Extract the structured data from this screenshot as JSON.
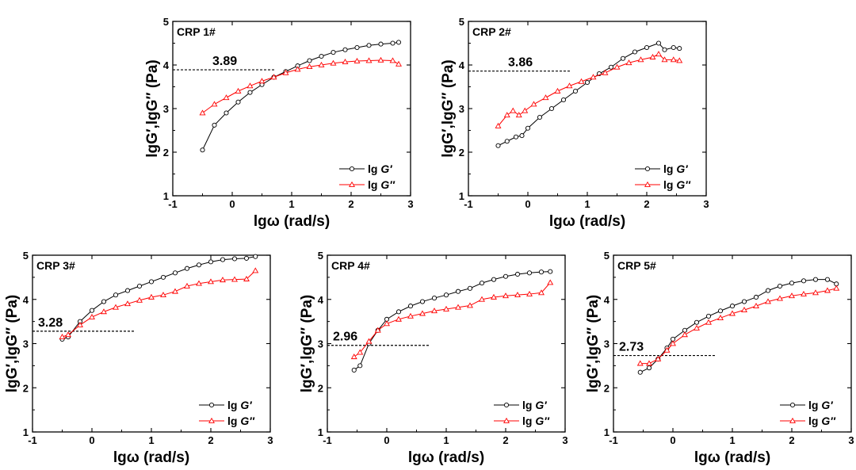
{
  "chart_data": [
    {
      "type": "line",
      "title": "CRP 1#",
      "xlabel": "lgω (rad/s)",
      "ylabel": "lgG′,lgG″ (Pa)",
      "xlim": [
        -1,
        3
      ],
      "ylim": [
        1,
        5
      ],
      "xticks": [
        -1,
        0,
        1,
        2,
        3
      ],
      "yticks": [
        1,
        2,
        3,
        4,
        5
      ],
      "crossover": 3.89,
      "crossover_label": "3.89",
      "series": [
        {
          "name": "lg G′",
          "name_prefix": "lg",
          "name_symbol": "G′",
          "color": "#000000",
          "marker": "circle",
          "x": [
            -0.5,
            -0.3,
            -0.1,
            0.1,
            0.3,
            0.5,
            0.7,
            0.9,
            1.1,
            1.3,
            1.5,
            1.7,
            1.9,
            2.1,
            2.3,
            2.5,
            2.7,
            2.8
          ],
          "y": [
            2.05,
            2.62,
            2.9,
            3.15,
            3.37,
            3.55,
            3.72,
            3.85,
            3.98,
            4.1,
            4.2,
            4.29,
            4.35,
            4.4,
            4.45,
            4.48,
            4.5,
            4.52
          ]
        },
        {
          "name": "lg G″",
          "name_prefix": "lg",
          "name_symbol": "G″",
          "color": "#ff0000",
          "marker": "triangle",
          "x": [
            -0.5,
            -0.3,
            -0.1,
            0.1,
            0.3,
            0.5,
            0.7,
            0.9,
            1.1,
            1.3,
            1.5,
            1.7,
            1.9,
            2.1,
            2.3,
            2.5,
            2.7,
            2.8
          ],
          "y": [
            2.9,
            3.1,
            3.25,
            3.4,
            3.52,
            3.63,
            3.72,
            3.82,
            3.9,
            3.96,
            4.0,
            4.04,
            4.07,
            4.09,
            4.1,
            4.11,
            4.1,
            4.02
          ]
        }
      ]
    },
    {
      "type": "line",
      "title": "CRP 2#",
      "xlabel": "lgω (rad/s)",
      "ylabel": "lgG′,lgG″ (Pa)",
      "xlim": [
        -1,
        3
      ],
      "ylim": [
        1,
        5
      ],
      "xticks": [
        -1,
        0,
        1,
        2,
        3
      ],
      "yticks": [
        1,
        2,
        3,
        4,
        5
      ],
      "crossover": 3.86,
      "crossover_label": "3.86",
      "series": [
        {
          "name": "lg G′",
          "name_prefix": "lg",
          "name_symbol": "G′",
          "color": "#000000",
          "marker": "circle",
          "x": [
            -0.5,
            -0.35,
            -0.2,
            -0.1,
            0.0,
            0.2,
            0.4,
            0.6,
            0.8,
            1.0,
            1.2,
            1.4,
            1.6,
            1.8,
            2.0,
            2.2,
            2.3,
            2.45,
            2.55
          ],
          "y": [
            2.15,
            2.25,
            2.35,
            2.38,
            2.55,
            2.8,
            3.0,
            3.2,
            3.4,
            3.6,
            3.8,
            3.95,
            4.15,
            4.3,
            4.4,
            4.5,
            4.35,
            4.4,
            4.38
          ]
        },
        {
          "name": "lg G″",
          "name_prefix": "lg",
          "name_symbol": "G″",
          "color": "#ff0000",
          "marker": "triangle",
          "x": [
            -0.5,
            -0.35,
            -0.25,
            -0.15,
            -0.05,
            0.1,
            0.3,
            0.5,
            0.7,
            0.9,
            1.1,
            1.3,
            1.5,
            1.7,
            1.9,
            2.1,
            2.2,
            2.3,
            2.45,
            2.55
          ],
          "y": [
            2.6,
            2.85,
            2.95,
            2.85,
            2.95,
            3.1,
            3.25,
            3.4,
            3.52,
            3.62,
            3.72,
            3.82,
            3.95,
            4.05,
            4.12,
            4.18,
            4.25,
            4.12,
            4.12,
            4.1
          ]
        }
      ]
    },
    {
      "type": "line",
      "title": "CRP 3#",
      "xlabel": "lgω (rad/s)",
      "ylabel": "lgG′,lgG″ (Pa)",
      "xlim": [
        -1,
        3
      ],
      "ylim": [
        1,
        5
      ],
      "xticks": [
        -1,
        0,
        1,
        2,
        3
      ],
      "yticks": [
        1,
        2,
        3,
        4,
        5
      ],
      "crossover": 3.28,
      "crossover_label": "3.28",
      "series": [
        {
          "name": "lg G′",
          "name_prefix": "lg",
          "name_symbol": "G′",
          "color": "#000000",
          "marker": "circle",
          "x": [
            -0.5,
            -0.4,
            -0.2,
            0.0,
            0.2,
            0.4,
            0.6,
            0.8,
            1.0,
            1.2,
            1.4,
            1.6,
            1.8,
            2.0,
            2.2,
            2.4,
            2.6,
            2.75
          ],
          "y": [
            3.1,
            3.15,
            3.5,
            3.75,
            3.95,
            4.1,
            4.2,
            4.3,
            4.4,
            4.5,
            4.6,
            4.7,
            4.78,
            4.85,
            4.9,
            4.92,
            4.93,
            4.97
          ]
        },
        {
          "name": "lg G″",
          "name_prefix": "lg",
          "name_symbol": "G″",
          "color": "#ff0000",
          "marker": "triangle",
          "x": [
            -0.5,
            -0.4,
            -0.2,
            0.0,
            0.2,
            0.4,
            0.6,
            0.8,
            1.0,
            1.2,
            1.4,
            1.6,
            1.8,
            2.0,
            2.2,
            2.4,
            2.6,
            2.75
          ],
          "y": [
            3.15,
            3.2,
            3.42,
            3.6,
            3.72,
            3.82,
            3.9,
            3.98,
            4.05,
            4.1,
            4.18,
            4.3,
            4.36,
            4.4,
            4.44,
            4.45,
            4.46,
            4.65
          ]
        }
      ]
    },
    {
      "type": "line",
      "title": "CRP 4#",
      "xlabel": "lgω (rad/s)",
      "ylabel": "lgG′,lgG″ (Pa)",
      "xlim": [
        -1,
        3
      ],
      "ylim": [
        1,
        5
      ],
      "xticks": [
        -1,
        0,
        1,
        2,
        3
      ],
      "yticks": [
        1,
        2,
        3,
        4,
        5
      ],
      "crossover": 2.96,
      "crossover_label": "2.96",
      "series": [
        {
          "name": "lg G′",
          "name_prefix": "lg",
          "name_symbol": "G′",
          "color": "#000000",
          "marker": "circle",
          "x": [
            -0.55,
            -0.45,
            -0.3,
            -0.15,
            0.0,
            0.2,
            0.4,
            0.6,
            0.8,
            1.0,
            1.2,
            1.4,
            1.6,
            1.8,
            2.0,
            2.2,
            2.4,
            2.6,
            2.75
          ],
          "y": [
            2.4,
            2.5,
            3.0,
            3.3,
            3.55,
            3.72,
            3.85,
            3.95,
            4.03,
            4.1,
            4.18,
            4.25,
            4.37,
            4.45,
            4.52,
            4.57,
            4.6,
            4.62,
            4.63
          ]
        },
        {
          "name": "lg G″",
          "name_prefix": "lg",
          "name_symbol": "G″",
          "color": "#ff0000",
          "marker": "triangle",
          "x": [
            -0.55,
            -0.45,
            -0.3,
            -0.15,
            0.0,
            0.2,
            0.4,
            0.6,
            0.8,
            1.0,
            1.2,
            1.4,
            1.6,
            1.8,
            2.0,
            2.2,
            2.4,
            2.6,
            2.75
          ],
          "y": [
            2.7,
            2.8,
            3.05,
            3.3,
            3.45,
            3.55,
            3.62,
            3.68,
            3.74,
            3.78,
            3.82,
            3.86,
            4.0,
            4.05,
            4.08,
            4.1,
            4.12,
            4.15,
            4.38
          ]
        }
      ]
    },
    {
      "type": "line",
      "title": "CRP 5#",
      "xlabel": "lgω (rad/s)",
      "ylabel": "lgG′,lgG″ (Pa)",
      "xlim": [
        -1,
        3
      ],
      "ylim": [
        1,
        5
      ],
      "xticks": [
        -1,
        0,
        1,
        2,
        3
      ],
      "yticks": [
        1,
        2,
        3,
        4,
        5
      ],
      "crossover": 2.73,
      "crossover_label": "2.73",
      "series": [
        {
          "name": "lg G′",
          "name_prefix": "lg",
          "name_symbol": "G′",
          "color": "#000000",
          "marker": "circle",
          "x": [
            -0.55,
            -0.4,
            -0.25,
            -0.1,
            0.0,
            0.2,
            0.4,
            0.6,
            0.8,
            1.0,
            1.2,
            1.4,
            1.6,
            1.8,
            2.0,
            2.2,
            2.4,
            2.6,
            2.75
          ],
          "y": [
            2.35,
            2.45,
            2.65,
            2.9,
            3.1,
            3.3,
            3.48,
            3.62,
            3.74,
            3.85,
            3.95,
            4.05,
            4.2,
            4.3,
            4.37,
            4.42,
            4.45,
            4.45,
            4.35
          ]
        },
        {
          "name": "lg G″",
          "name_prefix": "lg",
          "name_symbol": "G″",
          "color": "#ff0000",
          "marker": "triangle",
          "x": [
            -0.55,
            -0.4,
            -0.25,
            -0.1,
            0.0,
            0.2,
            0.4,
            0.6,
            0.8,
            1.0,
            1.2,
            1.4,
            1.6,
            1.8,
            2.0,
            2.2,
            2.4,
            2.6,
            2.75
          ],
          "y": [
            2.55,
            2.55,
            2.65,
            2.85,
            3.0,
            3.2,
            3.35,
            3.48,
            3.58,
            3.68,
            3.76,
            3.85,
            3.95,
            4.02,
            4.08,
            4.12,
            4.15,
            4.2,
            4.25
          ]
        }
      ]
    }
  ]
}
